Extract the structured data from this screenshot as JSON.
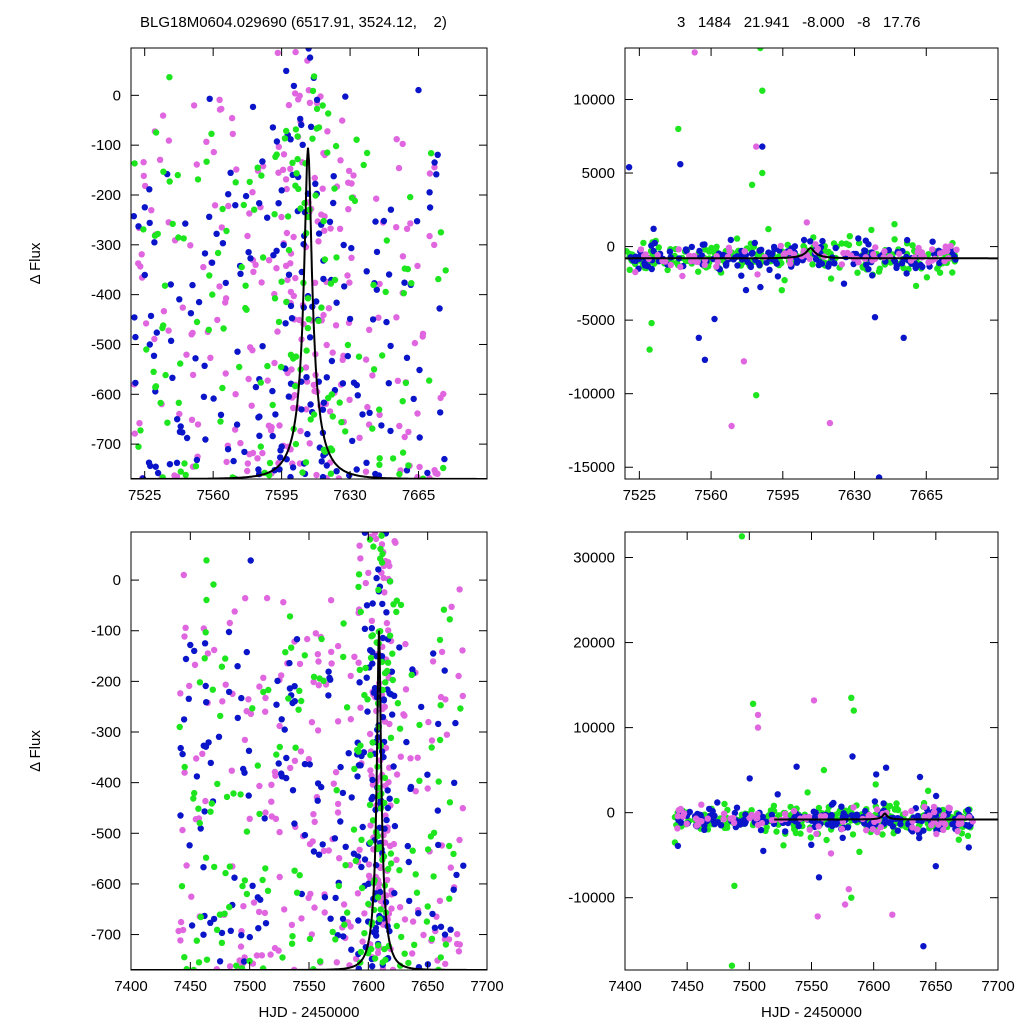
{
  "header": {
    "left": "BLG18M0604.029690 (6517.91, 3524.12,    2)",
    "right": "3   1484   21.941   -8.000   -8   17.76"
  },
  "colors": {
    "pink": "#e066e0",
    "blue": "#0a14c8",
    "green": "#1ee61e",
    "model": "#000000"
  },
  "chart_data": [
    {
      "type": "scatter",
      "panel": "top-left",
      "xlabel": "",
      "ylabel": "Δ Flux",
      "xlim": [
        7518,
        7700
      ],
      "ylim": [
        -770,
        95
      ],
      "xticks": [
        7525,
        7560,
        7595,
        7630,
        7665
      ],
      "yticks": [
        0,
        -100,
        -200,
        -300,
        -400,
        -500,
        -600,
        -700
      ],
      "model": {
        "t0": 7608.5,
        "tE": 13.0,
        "base": -770,
        "peak": -105
      },
      "clouds": [
        {
          "color": "pink",
          "count": 260,
          "seed": 11,
          "xrange": [
            7518,
            7680
          ],
          "center": [
            7607,
            9
          ],
          "ybase": [
            -770,
            -20
          ],
          "ytop": 95,
          "cw": 0.28
        },
        {
          "color": "blue",
          "count": 210,
          "seed": 23,
          "xrange": [
            7518,
            7680
          ],
          "center": [
            7605,
            11
          ],
          "ybase": [
            -770,
            -150
          ],
          "ytop": 95,
          "cw": 0.25
        },
        {
          "color": "green",
          "count": 170,
          "seed": 37,
          "xrange": [
            7518,
            7680
          ],
          "center": [
            7607,
            9
          ],
          "ybase": [
            -770,
            -50
          ],
          "ytop": 95,
          "cw": 0.25
        }
      ]
    },
    {
      "type": "scatter",
      "panel": "top-right",
      "xlabel": "",
      "ylabel": "",
      "xlim": [
        7518,
        7700
      ],
      "ylim": [
        -15800,
        13500
      ],
      "xticks": [
        7525,
        7560,
        7595,
        7630,
        7665
      ],
      "yticks": [
        10000,
        5000,
        0,
        -5000,
        -10000,
        -15000
      ],
      "model": {
        "t0": 7608.5,
        "tE": 13.0,
        "base": -800,
        "peak": -105
      },
      "band": {
        "xrange": [
          7518,
          7680
        ],
        "center": -600,
        "spread": 600
      },
      "clouds": [
        {
          "color": "green",
          "count": 260,
          "seed": 5,
          "core": 800
        },
        {
          "color": "blue",
          "count": 180,
          "seed": 9,
          "core": 800
        },
        {
          "color": "pink",
          "count": 80,
          "seed": 13,
          "core": 800
        }
      ],
      "outliers": [
        {
          "color": "pink",
          "x": [
            7552,
            7582,
            7570,
            7576,
            7618,
            7546
          ],
          "y": [
            13200,
            6800,
            -12200,
            -7800,
            -12000,
            -2000
          ]
        },
        {
          "color": "green",
          "x": [
            7584,
            7585,
            7544,
            7580,
            7585,
            7582,
            7530,
            7531
          ],
          "y": [
            13500,
            10600,
            8000,
            4200,
            5000,
            -10100,
            -7000,
            -5200
          ]
        },
        {
          "color": "blue",
          "x": [
            7520,
            7545,
            7585,
            7642,
            7557,
            7554,
            7640,
            7654
          ],
          "y": [
            5400,
            5600,
            6800,
            -15700,
            -7700,
            -6200,
            -4800,
            -6200
          ]
        }
      ]
    },
    {
      "type": "scatter",
      "panel": "bottom-left",
      "xlabel": "HJD - 2450000",
      "ylabel": "Δ Flux",
      "xlim": [
        7400,
        7700
      ],
      "ylim": [
        -770,
        95
      ],
      "xticks": [
        7400,
        7450,
        7500,
        7550,
        7600,
        7650,
        7700
      ],
      "yticks": [
        0,
        -100,
        -200,
        -300,
        -400,
        -500,
        -600,
        -700
      ],
      "model": {
        "t0": 7609,
        "tE": 11.0,
        "base": -770,
        "peak": -100
      },
      "clouds": [
        {
          "color": "pink",
          "count": 300,
          "seed": 41,
          "xrange": [
            7440,
            7680
          ],
          "center": [
            7609,
            7
          ],
          "ybase": [
            -770,
            -30
          ],
          "ytop": 95,
          "cw": 0.25
        },
        {
          "color": "blue",
          "count": 240,
          "seed": 53,
          "xrange": [
            7440,
            7680
          ],
          "center": [
            7607,
            7
          ],
          "ybase": [
            -770,
            -100
          ],
          "ytop": 95,
          "cw": 0.28
        },
        {
          "color": "green",
          "count": 220,
          "seed": 67,
          "xrange": [
            7440,
            7680
          ],
          "center": [
            7608,
            7
          ],
          "ybase": [
            -770,
            -80
          ],
          "ytop": 95,
          "cw": 0.25
        }
      ]
    },
    {
      "type": "scatter",
      "panel": "bottom-right",
      "xlabel": "HJD - 2450000",
      "ylabel": "",
      "xlim": [
        7400,
        7700
      ],
      "ylim": [
        -18500,
        33000
      ],
      "xticks": [
        7400,
        7450,
        7500,
        7550,
        7600,
        7650,
        7700
      ],
      "yticks": [
        30000,
        20000,
        10000,
        0,
        -10000
      ],
      "model": {
        "t0": 7609,
        "tE": 11.0,
        "base": -800,
        "peak": -100,
        "xstart": 7520
      },
      "band": {
        "xrange": [
          7440,
          7680
        ],
        "center": -600,
        "spread": 900
      },
      "clouds": [
        {
          "color": "green",
          "count": 280,
          "seed": 71,
          "core": 1200
        },
        {
          "color": "blue",
          "count": 200,
          "seed": 83,
          "core": 1200
        },
        {
          "color": "pink",
          "count": 90,
          "seed": 97,
          "core": 1200
        }
      ],
      "outliers": [
        {
          "color": "green",
          "x": [
            7494,
            7582,
            7584,
            7503,
            7488,
            7486,
            7582,
            7560
          ],
          "y": [
            32500,
            13500,
            12000,
            12800,
            -8600,
            -18000,
            -10000,
            5000
          ]
        },
        {
          "color": "pink",
          "x": [
            7507,
            7552,
            7507,
            7580,
            7577,
            7615,
            7555
          ],
          "y": [
            11500,
            13200,
            10000,
            -9000,
            -10800,
            -12000,
            -12200
          ]
        },
        {
          "color": "blue",
          "x": [
            7583,
            7640,
            7556,
            7650,
            7602,
            7538
          ],
          "y": [
            6600,
            -15700,
            -7600,
            -6300,
            4500,
            5400
          ]
        }
      ]
    }
  ]
}
